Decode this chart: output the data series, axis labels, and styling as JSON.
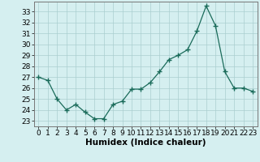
{
  "x": [
    0,
    1,
    2,
    3,
    4,
    5,
    6,
    7,
    8,
    9,
    10,
    11,
    12,
    13,
    14,
    15,
    16,
    17,
    18,
    19,
    20,
    21,
    22,
    23
  ],
  "y": [
    27.0,
    26.7,
    25.0,
    24.0,
    24.5,
    23.8,
    23.2,
    23.2,
    24.5,
    24.8,
    25.9,
    25.9,
    26.5,
    27.5,
    28.6,
    29.0,
    29.5,
    31.2,
    33.5,
    31.7,
    27.5,
    26.0,
    26.0,
    25.7
  ],
  "line_color": "#1a6b5a",
  "marker": "+",
  "marker_size": 4,
  "bg_color": "#d5eff0",
  "grid_color": "#aacfcf",
  "ylabel_ticks": [
    23,
    24,
    25,
    26,
    27,
    28,
    29,
    30,
    31,
    32,
    33
  ],
  "xlabel": "Humidex (Indice chaleur)",
  "xlim": [
    -0.5,
    23.5
  ],
  "ylim": [
    22.5,
    33.9
  ],
  "tick_fontsize": 6.5,
  "xlabel_fontsize": 7.5
}
